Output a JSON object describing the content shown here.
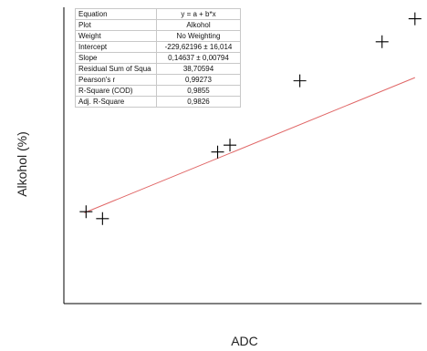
{
  "chart_data": {
    "type": "scatter",
    "xlabel": "ADC",
    "ylabel": "Alkohol (%)",
    "x": [
      1596.0,
      1598.0,
      1612.0,
      1613.5,
      1622.0,
      1632.0,
      1636.0
    ],
    "y": [
      4.0,
      3.7,
      6.6,
      6.9,
      9.7,
      11.4,
      12.4
    ],
    "fit": {
      "intercept": -229.62196,
      "slope": 0.14637,
      "x_range": [
        1595.8,
        1636.0
      ]
    },
    "xlim": [
      1593.3,
      1636.8
    ],
    "ylim": [
      -0.0,
      12.9
    ],
    "grid": false,
    "colors": {
      "points": "#000000",
      "fit_line": "#e06666"
    }
  },
  "stats_table": [
    {
      "key": "Equation",
      "value": "y = a + b*x"
    },
    {
      "key": "Plot",
      "value": "Alkohol"
    },
    {
      "key": "Weight",
      "value": "No Weighting"
    },
    {
      "key": "Intercept",
      "value": "-229,62196 ± 16,014"
    },
    {
      "key": "Slope",
      "value": "0,14637 ± 0,00794"
    },
    {
      "key": "Residual Sum of Squa",
      "value": "38,70594"
    },
    {
      "key": "Pearson's r",
      "value": "0,99273"
    },
    {
      "key": "R-Square (COD)",
      "value": "0,9855"
    },
    {
      "key": "Adj. R-Square",
      "value": "0,9826"
    }
  ]
}
